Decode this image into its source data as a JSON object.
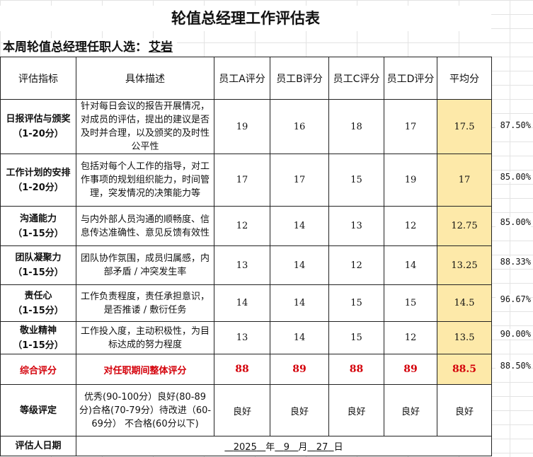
{
  "title": "轮值总经理工作评估表",
  "subtitle": {
    "label": "本周轮值总经理任职人选：",
    "person": "艾岩"
  },
  "headers": [
    "评估指标",
    "具体描述",
    "员工A评分",
    "员工B评分",
    "员工C评分",
    "员工D评分",
    "平均分"
  ],
  "rows": [
    {
      "metric": "日报评估与颁奖",
      "range": "（1-20分）",
      "desc": "针对每日会议的报告开展情况，对成员的评估，提出的建议是否及时并合理，以及颁奖的及时性公平性",
      "scores": [
        "19",
        "16",
        "18",
        "17"
      ],
      "avg": "17.5",
      "pct": "87.50%"
    },
    {
      "metric": "工作计划的安排",
      "range": "（1-20分）",
      "desc": "包括对每个人工作的指导，对工作事项的规划组织能力，时间管理，突发情况的决策能力等",
      "scores": [
        "17",
        "17",
        "15",
        "19"
      ],
      "avg": "17",
      "pct": "85.00%"
    },
    {
      "metric": "沟通能力",
      "range": "（1-15分）",
      "desc": "与内外部人员沟通的顺畅度、信息传达准确性、意见反馈有效性",
      "scores": [
        "12",
        "14",
        "13",
        "12"
      ],
      "avg": "12.75",
      "pct": "85.00%"
    },
    {
      "metric": "团队凝聚力",
      "range": "（1-15分）",
      "desc": "团队协作氛围，成员归属感，内部矛盾 / 冲突发生率",
      "scores": [
        "13",
        "14",
        "12",
        "14"
      ],
      "avg": "13.25",
      "pct": "88.33%"
    },
    {
      "metric": "责任心",
      "range": "（1-15分）",
      "desc": "工作负责程度，责任承担意识，是否推诿 / 敷衍任务",
      "scores": [
        "14",
        "14",
        "15",
        "15"
      ],
      "avg": "14.5",
      "pct": "96.67%"
    },
    {
      "metric": "敬业精神",
      "range": "（1-15分）",
      "desc": "工作投入度，主动积极性，为目标达成的努力程度",
      "scores": [
        "13",
        "14",
        "15",
        "12"
      ],
      "avg": "13.5",
      "pct": "90.00%"
    }
  ],
  "total": {
    "label": "综合评分",
    "desc": "对任职期间整体评分",
    "scores": [
      "88",
      "89",
      "88",
      "89"
    ],
    "avg": "88.5",
    "pct": "88.50%"
  },
  "grade": {
    "label": "等级评定",
    "desc": "优秀(90-100分）良好(80-89分)合格(70-79分）待改进（60-69分） 不合格(60分以下)",
    "values": [
      "良好",
      "良好",
      "良好",
      "良好",
      "良好"
    ]
  },
  "footer": {
    "label": "评估人日期",
    "year": "2025",
    "year_unit": "年",
    "month": "9",
    "month_unit": "月",
    "day": "27",
    "day_unit": "日"
  },
  "colors": {
    "avg_fill": "#fde9a9",
    "total_text": "#d4000a"
  }
}
